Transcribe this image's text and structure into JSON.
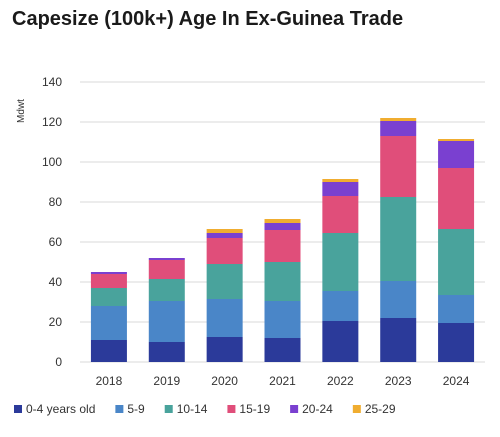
{
  "chart_data": {
    "type": "bar",
    "stacked": true,
    "title": "Capesize (100k+) Age In Ex-Guinea Trade",
    "ylabel": "Mdwt",
    "xlabel": "",
    "ylim": [
      0,
      140
    ],
    "yticks": [
      0,
      20,
      40,
      60,
      80,
      100,
      120,
      140
    ],
    "grid": true,
    "legend_position": "bottom",
    "categories": [
      "2018",
      "2019",
      "2020",
      "2021",
      "2022",
      "2023",
      "2024"
    ],
    "series": [
      {
        "name": "0-4 years old",
        "color": "#2b3a9a",
        "values": [
          11,
          10,
          12.5,
          12,
          20.5,
          22,
          19.5
        ]
      },
      {
        "name": "5-9",
        "color": "#4a86c8",
        "values": [
          17,
          20.5,
          19,
          18.5,
          15,
          18.5,
          14
        ]
      },
      {
        "name": "10-14",
        "color": "#49a39c",
        "values": [
          9,
          11,
          17.5,
          19.5,
          29,
          42,
          33
        ]
      },
      {
        "name": "15-19",
        "color": "#e04e7a",
        "values": [
          7,
          9.5,
          13,
          16,
          18.5,
          30.5,
          30.5
        ]
      },
      {
        "name": "20-24",
        "color": "#7a40d0",
        "values": [
          1,
          1,
          2.5,
          3.5,
          7,
          7.5,
          13.5
        ]
      },
      {
        "name": "25-29",
        "color": "#f0ad30",
        "values": [
          0,
          0,
          2,
          2,
          1.5,
          1.5,
          1
        ]
      }
    ]
  }
}
